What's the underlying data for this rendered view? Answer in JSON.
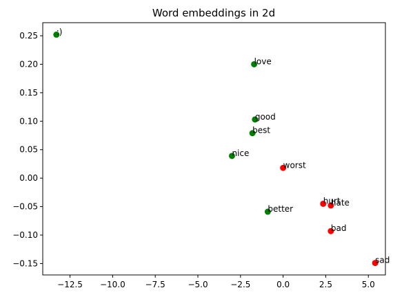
{
  "chart_data": {
    "type": "scatter",
    "title": "Word embeddings in 2d",
    "xlabel": "",
    "ylabel": "",
    "xlim": [
      -14.1,
      6.0
    ],
    "ylim": [
      -0.17,
      0.273
    ],
    "xticks": [
      {
        "value": -12.5,
        "label": "−12.5"
      },
      {
        "value": -10.0,
        "label": "−10.0"
      },
      {
        "value": -7.5,
        "label": "−7.5"
      },
      {
        "value": -5.0,
        "label": "−5.0"
      },
      {
        "value": -2.5,
        "label": "−2.5"
      },
      {
        "value": 0.0,
        "label": "0.0"
      },
      {
        "value": 2.5,
        "label": "2.5"
      },
      {
        "value": 5.0,
        "label": "5.0"
      }
    ],
    "yticks": [
      {
        "value": 0.25,
        "label": "0.25"
      },
      {
        "value": 0.2,
        "label": "0.20"
      },
      {
        "value": 0.15,
        "label": "0.15"
      },
      {
        "value": 0.1,
        "label": "0.10"
      },
      {
        "value": 0.05,
        "label": "0.05"
      },
      {
        "value": 0.0,
        "label": "0.00"
      },
      {
        "value": -0.05,
        "label": "−0.05"
      },
      {
        "value": -0.1,
        "label": "−0.10"
      },
      {
        "value": -0.15,
        "label": "−0.15"
      }
    ],
    "grid": false,
    "colors": {
      "positive": "#008000",
      "negative": "#ff0000"
    },
    "points": [
      {
        "label": ":)",
        "x": -13.3,
        "y": 0.252,
        "color": "#008000"
      },
      {
        "label": "love",
        "x": -1.7,
        "y": 0.2,
        "color": "#008000"
      },
      {
        "label": "good",
        "x": -1.65,
        "y": 0.103,
        "color": "#008000"
      },
      {
        "label": "best",
        "x": -1.8,
        "y": 0.079,
        "color": "#008000"
      },
      {
        "label": "nice",
        "x": -3.0,
        "y": 0.039,
        "color": "#008000"
      },
      {
        "label": "better",
        "x": -0.9,
        "y": -0.059,
        "color": "#008000"
      },
      {
        "label": "worst",
        "x": 0.0,
        "y": 0.018,
        "color": "#ff0000"
      },
      {
        "label": "hurt",
        "x": 2.35,
        "y": -0.045,
        "color": "#ff0000"
      },
      {
        "label": "hate",
        "x": 2.8,
        "y": -0.048,
        "color": "#ff0000"
      },
      {
        "label": "bad",
        "x": 2.8,
        "y": -0.093,
        "color": "#ff0000"
      },
      {
        "label": "sad",
        "x": 5.4,
        "y": -0.149,
        "color": "#ff0000"
      }
    ]
  }
}
